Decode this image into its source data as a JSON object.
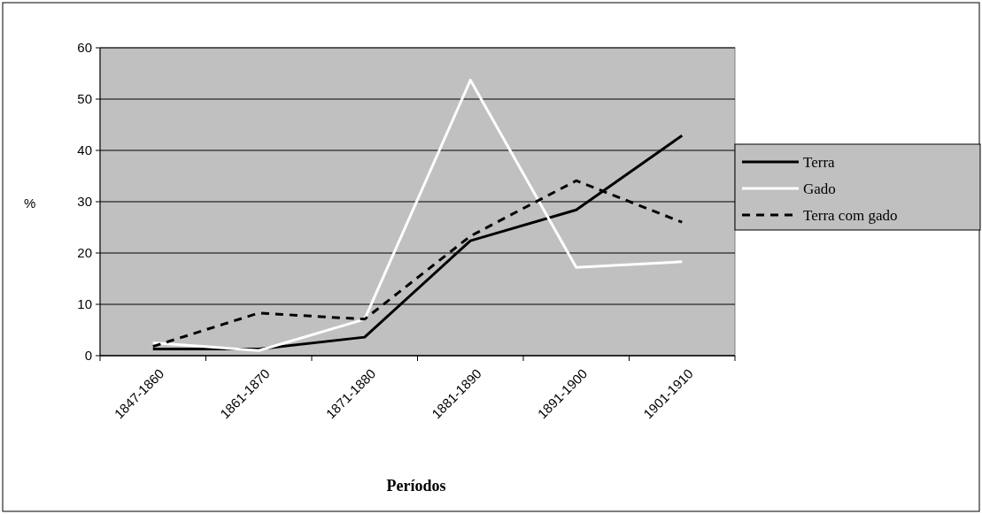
{
  "chart_data": {
    "type": "line",
    "ylabel": "%",
    "xlabel": "Períodos",
    "categories": [
      "1847-1860",
      "1861-1870",
      "1871-1880",
      "1881-1890",
      "1891-1900",
      "1901-1910"
    ],
    "series": [
      {
        "name": "Terra",
        "color": "#000000",
        "line_style": "solid",
        "values": [
          1.3,
          1.3,
          3.6,
          22.4,
          28.4,
          42.9
        ]
      },
      {
        "name": "Gado",
        "color": "#ffffff",
        "line_style": "solid",
        "values": [
          2.5,
          1.0,
          7.1,
          53.7,
          17.2,
          18.3
        ]
      },
      {
        "name": "Terra com gado",
        "color": "#000000",
        "line_style": "dashed",
        "values": [
          1.8,
          8.3,
          7.1,
          23.3,
          34.1,
          26.0
        ]
      }
    ],
    "ylim": [
      0,
      60
    ],
    "yticks": [
      0,
      10,
      20,
      30,
      40,
      50,
      60
    ],
    "grid": "y",
    "legend": "right",
    "marker": "none"
  }
}
